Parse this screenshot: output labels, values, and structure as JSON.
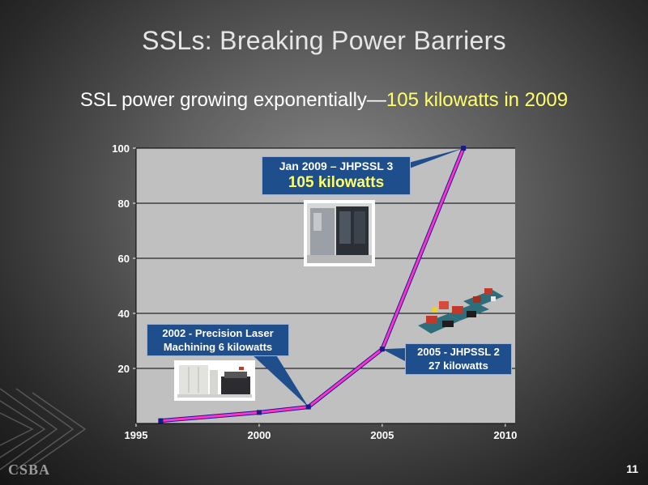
{
  "slide": {
    "title": "SSLs: Breaking Power Barriers",
    "subtitle_main": "SSL power growing exponentially—",
    "subtitle_highlight": "105 kilowatts in 2009",
    "slide_number": "11",
    "logo_text": "CSBA"
  },
  "callouts": {
    "c2009_line1": "Jan 2009 – JHPSSL 3",
    "c2009_line2": "105 kilowatts",
    "c2002_line1": "2002 - Precision Laser",
    "c2002_line2": "Machining 6 kilowatts",
    "c2005_line1": "2005 - JHPSSL 2",
    "c2005_line2": "27 kilowatts"
  },
  "colors": {
    "plot_bg": "#c0c0c0",
    "line_color": "#ff33cc",
    "marker_color": "#1a1a8c",
    "callout_bg": "#1f4e8c",
    "highlight": "#ffff66"
  },
  "chart_data": {
    "type": "line",
    "x": [
      1996,
      2000,
      2002,
      2005,
      2008.3
    ],
    "values": [
      1,
      4,
      6,
      27,
      100
    ],
    "xlim": [
      1995,
      2010.4
    ],
    "ylim": [
      0,
      100
    ],
    "xticks": [
      1995,
      2000,
      2005,
      2010
    ],
    "yticks": [
      20,
      40,
      60,
      80,
      100
    ],
    "grid": true
  }
}
